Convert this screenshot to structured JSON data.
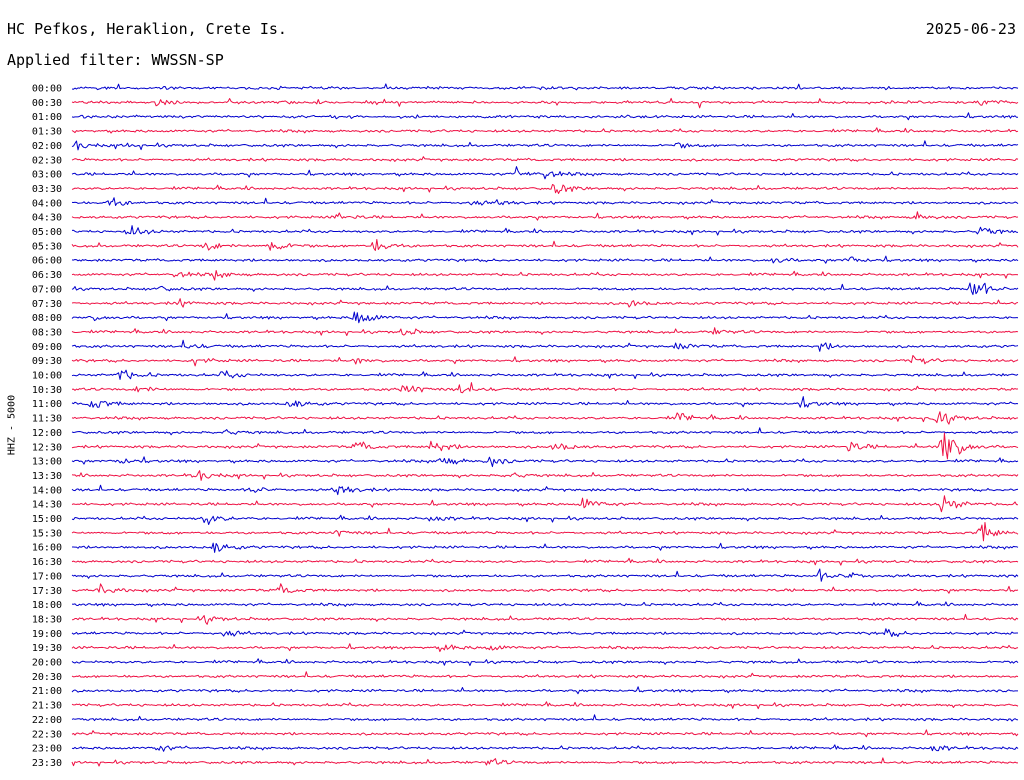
{
  "header": {
    "station": "HC Pefkos, Heraklion, Crete Is.",
    "date": "2025-06-23",
    "filter": "Applied filter: WWSSN-SP"
  },
  "chart_data": {
    "type": "line",
    "title": "HC Pefkos, Heraklion, Crete Is.",
    "ylabel": "HHZ - 5000",
    "colors": [
      "#0000cc",
      "#ee1144"
    ],
    "rows": [
      {
        "label": "00:00",
        "events": []
      },
      {
        "label": "00:30",
        "events": [
          [
            0.09,
            0.3
          ],
          [
            0.96,
            0.3
          ]
        ]
      },
      {
        "label": "01:00",
        "events": []
      },
      {
        "label": "01:30",
        "events": []
      },
      {
        "label": "02:00",
        "events": [
          [
            0.0,
            0.6
          ],
          [
            0.06,
            0.25
          ],
          [
            0.64,
            0.3
          ]
        ]
      },
      {
        "label": "02:30",
        "events": []
      },
      {
        "label": "03:00",
        "events": [
          [
            0.47,
            0.5
          ],
          [
            0.5,
            0.5
          ]
        ]
      },
      {
        "label": "03:30",
        "events": [
          [
            0.51,
            0.7
          ]
        ]
      },
      {
        "label": "04:00",
        "events": [
          [
            0.04,
            0.6
          ],
          [
            0.42,
            0.4
          ],
          [
            0.45,
            0.3
          ]
        ]
      },
      {
        "label": "04:30",
        "events": [
          [
            0.28,
            0.4
          ],
          [
            0.89,
            0.5
          ]
        ]
      },
      {
        "label": "05:00",
        "events": [
          [
            0.06,
            0.7
          ],
          [
            0.96,
            0.6
          ]
        ]
      },
      {
        "label": "05:30",
        "events": [
          [
            0.14,
            0.6
          ],
          [
            0.21,
            0.9
          ],
          [
            0.32,
            0.8
          ]
        ]
      },
      {
        "label": "06:00",
        "events": [
          [
            0.74,
            0.4
          ],
          [
            0.82,
            0.5
          ]
        ]
      },
      {
        "label": "06:30",
        "events": [
          [
            0.11,
            0.4
          ],
          [
            0.15,
            0.5
          ]
        ]
      },
      {
        "label": "07:00",
        "events": [
          [
            0.09,
            0.3
          ],
          [
            0.95,
            1.6
          ]
        ]
      },
      {
        "label": "07:30",
        "events": [
          [
            0.11,
            0.4
          ],
          [
            0.59,
            0.5
          ]
        ]
      },
      {
        "label": "08:00",
        "events": [
          [
            0.02,
            0.3
          ],
          [
            0.3,
            1.3
          ]
        ]
      },
      {
        "label": "08:30",
        "events": [
          [
            0.35,
            0.4
          ],
          [
            0.68,
            0.3
          ]
        ]
      },
      {
        "label": "09:00",
        "events": [
          [
            0.12,
            0.4
          ],
          [
            0.64,
            0.4
          ],
          [
            0.79,
            0.4
          ]
        ]
      },
      {
        "label": "09:30",
        "events": [
          [
            0.13,
            0.4
          ],
          [
            0.3,
            0.3
          ],
          [
            0.89,
            0.5
          ]
        ]
      },
      {
        "label": "10:00",
        "events": [
          [
            0.05,
            0.7
          ],
          [
            0.16,
            0.5
          ]
        ]
      },
      {
        "label": "10:30",
        "events": [
          [
            0.07,
            0.4
          ],
          [
            0.35,
            0.8
          ],
          [
            0.41,
            0.6
          ]
        ]
      },
      {
        "label": "11:00",
        "events": [
          [
            0.02,
            0.8
          ],
          [
            0.23,
            0.6
          ],
          [
            0.77,
            0.5
          ]
        ]
      },
      {
        "label": "11:30",
        "events": [
          [
            0.64,
            0.5
          ],
          [
            0.91,
            1.5
          ]
        ]
      },
      {
        "label": "12:00",
        "events": [
          [
            0.16,
            0.3
          ]
        ]
      },
      {
        "label": "12:30",
        "events": [
          [
            0.3,
            0.6
          ],
          [
            0.38,
            0.8
          ],
          [
            0.51,
            0.7
          ],
          [
            0.82,
            0.6
          ],
          [
            0.92,
            3.4
          ]
        ]
      },
      {
        "label": "13:00",
        "events": [
          [
            0.05,
            0.4
          ],
          [
            0.39,
            0.7
          ],
          [
            0.44,
            0.6
          ]
        ]
      },
      {
        "label": "13:30",
        "events": [
          [
            0.13,
            0.7
          ],
          [
            0.46,
            0.4
          ]
        ]
      },
      {
        "label": "14:00",
        "events": [
          [
            0.19,
            0.5
          ],
          [
            0.28,
            0.8
          ]
        ]
      },
      {
        "label": "14:30",
        "events": [
          [
            0.54,
            0.8
          ],
          [
            0.92,
            1.3
          ]
        ]
      },
      {
        "label": "15:00",
        "events": [
          [
            0.14,
            0.8
          ],
          [
            0.38,
            0.4
          ]
        ]
      },
      {
        "label": "15:30",
        "events": [
          [
            0.96,
            1.2
          ],
          [
            0.28,
            0.3
          ]
        ]
      },
      {
        "label": "16:00",
        "events": [
          [
            0.15,
            0.7
          ]
        ]
      },
      {
        "label": "16:30",
        "events": []
      },
      {
        "label": "17:00",
        "events": [
          [
            0.79,
            0.6
          ],
          [
            0.82,
            0.5
          ]
        ]
      },
      {
        "label": "17:30",
        "events": [
          [
            0.03,
            0.6
          ],
          [
            0.22,
            0.5
          ]
        ]
      },
      {
        "label": "18:00",
        "events": []
      },
      {
        "label": "18:30",
        "events": [
          [
            0.14,
            0.4
          ]
        ]
      },
      {
        "label": "19:00",
        "events": [
          [
            0.16,
            0.5
          ],
          [
            0.86,
            0.4
          ]
        ]
      },
      {
        "label": "19:30",
        "events": [
          [
            0.39,
            0.5
          ],
          [
            0.44,
            0.4
          ]
        ]
      },
      {
        "label": "20:00",
        "events": []
      },
      {
        "label": "20:30",
        "events": []
      },
      {
        "label": "21:00",
        "events": []
      },
      {
        "label": "21:30",
        "events": []
      },
      {
        "label": "22:00",
        "events": []
      },
      {
        "label": "22:30",
        "events": []
      },
      {
        "label": "23:00",
        "events": [
          [
            0.09,
            0.4
          ],
          [
            0.91,
            0.4
          ]
        ]
      },
      {
        "label": "23:30",
        "events": [
          [
            0.44,
            0.4
          ]
        ]
      }
    ]
  }
}
